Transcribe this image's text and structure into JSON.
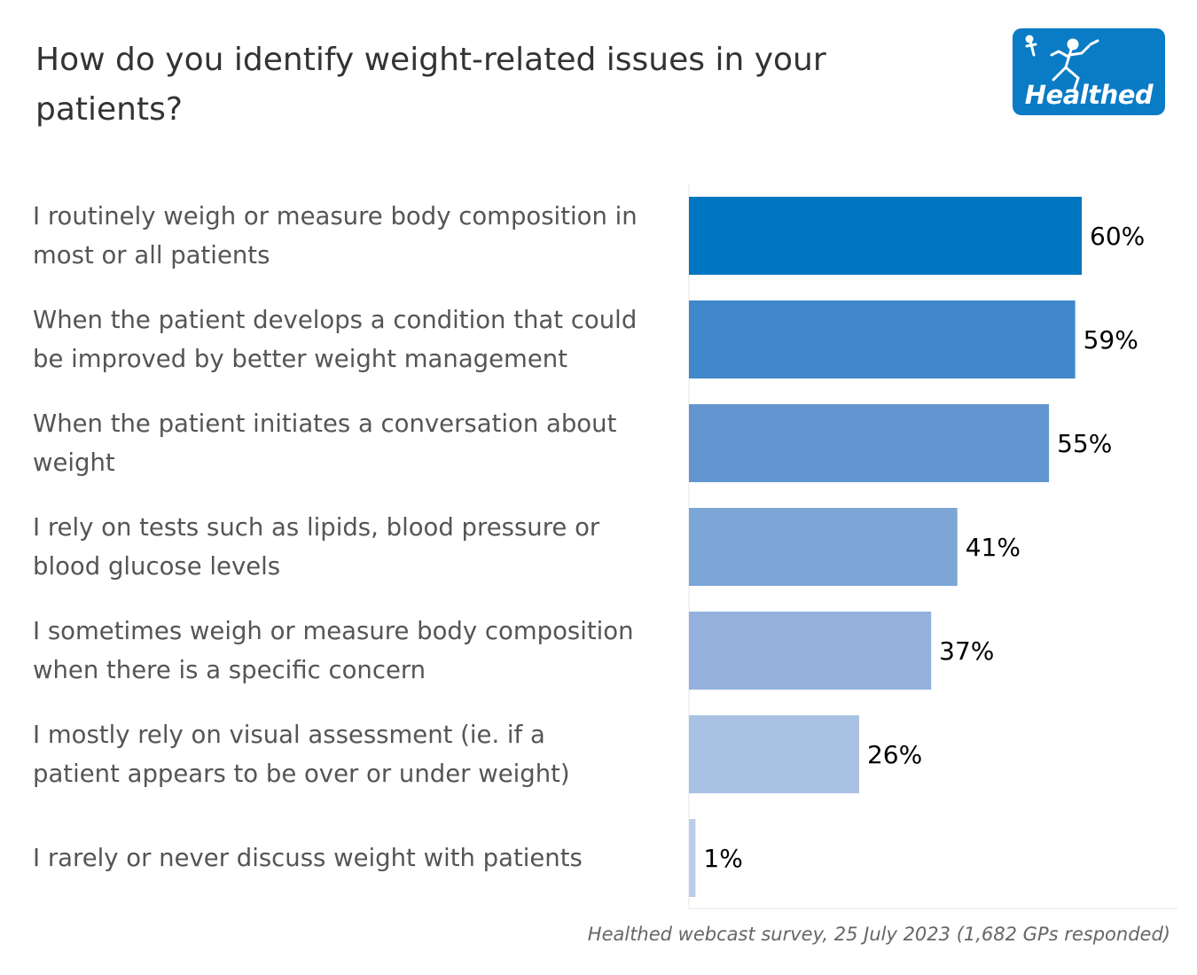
{
  "title": "How do you identify weight-related issues in your patients?",
  "logo": {
    "brand": "Healthed",
    "icon": "running-figure-icon"
  },
  "colors": {
    "logo_background": "#0a7bc5",
    "title_text": "#333333",
    "label_text": "#555555",
    "value_text": "#000000"
  },
  "chart_data": {
    "type": "bar",
    "orientation": "horizontal",
    "title": "How do you identify weight-related issues in your patients?",
    "categories": [
      [
        "I routinely weigh or measure body composition in",
        "most or all patients"
      ],
      [
        "When the patient develops a condition that could",
        "be improved by better weight management"
      ],
      [
        "When the patient initiates a conversation about",
        "weight"
      ],
      [
        "I rely on tests such as lipids, blood pressure or",
        "blood glucose levels"
      ],
      [
        "I sometimes weigh or measure body composition",
        "when there is a specific concern"
      ],
      [
        "I mostly rely on visual assessment (ie. if a",
        "patient appears to be over or under weight)"
      ],
      [
        "I rarely or never discuss weight with patients"
      ]
    ],
    "values": [
      60,
      59,
      55,
      41,
      37,
      26,
      1
    ],
    "value_labels": [
      "60%",
      "59%",
      "55%",
      "41%",
      "37%",
      "26%",
      "1%"
    ],
    "unit": "%",
    "bar_colors": [
      "#0075c0",
      "#4087cb",
      "#6396d0",
      "#7ba6d6",
      "#93b1dc",
      "#a9c2e4",
      "#bccde9"
    ],
    "xlim": [
      0,
      60
    ],
    "grid": false,
    "legend": "none"
  },
  "source_note": "Healthed webcast survey, 25 July 2023 (1,682 GPs responded)"
}
